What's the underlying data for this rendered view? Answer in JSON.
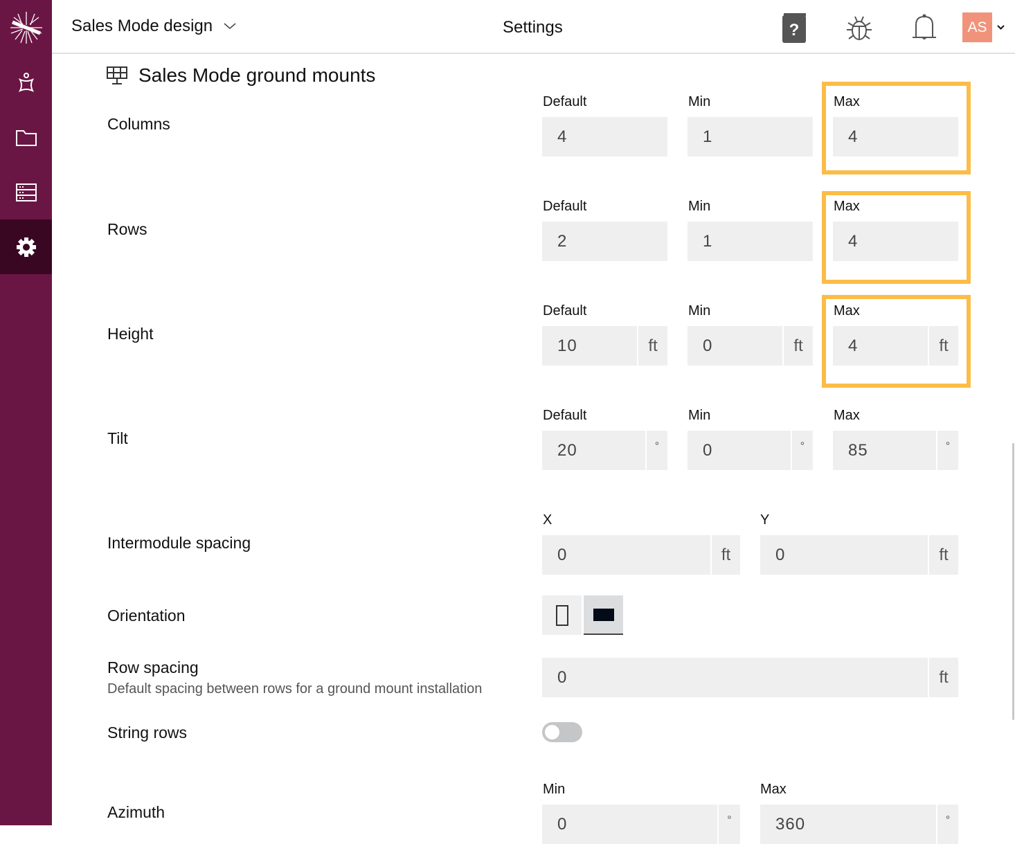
{
  "header": {
    "project": "Sales Mode design",
    "title": "Settings",
    "avatar": "AS"
  },
  "colors": {
    "sidebar": "#6a1644",
    "sidebar_active": "#3a0722",
    "highlight": "#fbbd47",
    "avatar": "#f0937a"
  },
  "section": {
    "title": "Sales Mode ground mounts"
  },
  "fields": {
    "columns": {
      "label": "Columns",
      "default_label": "Default",
      "min_label": "Min",
      "max_label": "Max",
      "default": "4",
      "min": "1",
      "max": "4"
    },
    "rows": {
      "label": "Rows",
      "default_label": "Default",
      "min_label": "Min",
      "max_label": "Max",
      "default": "2",
      "min": "1",
      "max": "4"
    },
    "height": {
      "label": "Height",
      "default_label": "Default",
      "min_label": "Min",
      "max_label": "Max",
      "default": "10",
      "min": "0",
      "max": "4",
      "unit": "ft"
    },
    "tilt": {
      "label": "Tilt",
      "default_label": "Default",
      "min_label": "Min",
      "max_label": "Max",
      "default": "20",
      "min": "0",
      "max": "85",
      "unit": "°"
    },
    "intermodule": {
      "label": "Intermodule spacing",
      "x_label": "X",
      "y_label": "Y",
      "x": "0",
      "y": "0",
      "unit": "ft"
    },
    "orientation": {
      "label": "Orientation",
      "selected": "landscape"
    },
    "row_spacing": {
      "label": "Row spacing",
      "description": "Default spacing between rows for a ground mount installation",
      "value": "0",
      "unit": "ft"
    },
    "string_rows": {
      "label": "String rows",
      "enabled": false
    },
    "azimuth": {
      "label": "Azimuth",
      "min_label": "Min",
      "max_label": "Max",
      "min": "0",
      "max": "360",
      "unit": "°"
    }
  }
}
